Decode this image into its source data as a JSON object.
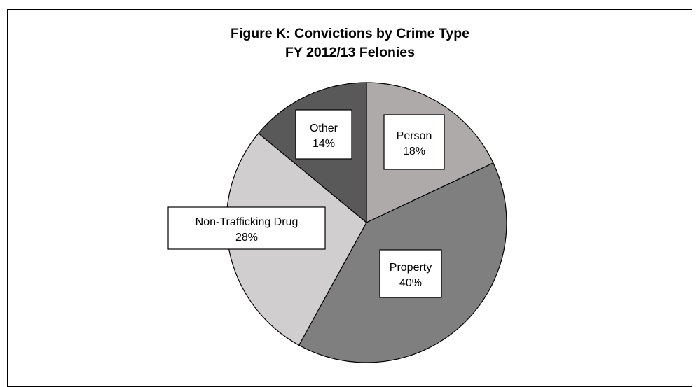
{
  "chart_data": {
    "type": "pie",
    "title": "Figure K: Convictions by Crime Type",
    "subtitle": "FY 2012/13 Felonies",
    "start_angle_deg": 0,
    "direction": "clockwise",
    "slices": [
      {
        "label": "Person",
        "value": 18,
        "value_label": "18%",
        "color": "#aeaaaa"
      },
      {
        "label": "Property",
        "value": 40,
        "value_label": "40%",
        "color": "#7f7f7f"
      },
      {
        "label": "Non-Trafficking Drug",
        "value": 28,
        "value_label": "28%",
        "color": "#d0cece"
      },
      {
        "label": "Other",
        "value": 14,
        "value_label": "14%",
        "color": "#595959"
      }
    ]
  }
}
